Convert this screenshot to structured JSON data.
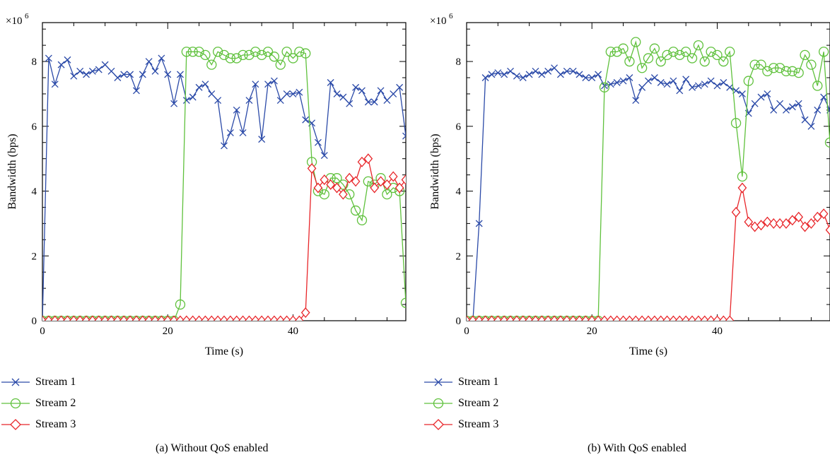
{
  "chart_data": [
    {
      "type": "line",
      "caption": "(a)  Without QoS enabled",
      "xlabel": "Time (s)",
      "ylabel": "Bandwidth (bps)",
      "y_multiplier": "×10",
      "y_exponent": "6",
      "xlim": [
        0,
        58
      ],
      "ylim": [
        0,
        9.2
      ],
      "x_ticks": [
        0,
        20,
        40
      ],
      "y_ticks": [
        0,
        2,
        4,
        6,
        8
      ],
      "legend_position": "bottom-left",
      "series": [
        {
          "name": "Stream 1",
          "color": "#2b4aa8",
          "marker": "x",
          "x": [
            0,
            1,
            2,
            3,
            4,
            5,
            6,
            7,
            8,
            9,
            10,
            11,
            12,
            13,
            14,
            15,
            16,
            17,
            18,
            19,
            20,
            21,
            22,
            23,
            24,
            25,
            26,
            27,
            28,
            29,
            30,
            31,
            32,
            33,
            34,
            35,
            36,
            37,
            38,
            39,
            40,
            41,
            42,
            43,
            44,
            45,
            46,
            47,
            48,
            49,
            50,
            51,
            52,
            53,
            54,
            55,
            56,
            57,
            58
          ],
          "y": [
            0,
            8.1,
            7.3,
            7.9,
            8.05,
            7.55,
            7.7,
            7.6,
            7.7,
            7.75,
            7.9,
            7.7,
            7.5,
            7.6,
            7.6,
            7.1,
            7.6,
            8.0,
            7.7,
            8.1,
            7.6,
            6.7,
            7.6,
            6.8,
            6.9,
            7.2,
            7.3,
            7.0,
            6.8,
            5.4,
            5.8,
            6.5,
            5.8,
            6.8,
            7.3,
            5.6,
            7.3,
            7.4,
            6.8,
            7.0,
            7.0,
            7.05,
            6.2,
            6.1,
            5.5,
            5.1,
            7.35,
            7.0,
            6.9,
            6.7,
            7.2,
            7.1,
            6.75,
            6.75,
            7.1,
            6.8,
            7.0,
            7.2,
            5.7
          ]
        },
        {
          "name": "Stream 2",
          "color": "#5fc13c",
          "marker": "circle",
          "x": [
            0,
            1,
            2,
            3,
            4,
            5,
            6,
            7,
            8,
            9,
            10,
            11,
            12,
            13,
            14,
            15,
            16,
            17,
            18,
            19,
            20,
            21,
            22,
            23,
            24,
            25,
            26,
            27,
            28,
            29,
            30,
            31,
            32,
            33,
            34,
            35,
            36,
            37,
            38,
            39,
            40,
            41,
            42,
            43,
            44,
            45,
            46,
            47,
            48,
            49,
            50,
            51,
            52,
            53,
            54,
            55,
            56,
            57,
            58
          ],
          "y": [
            0,
            0,
            0,
            0,
            0,
            0,
            0,
            0,
            0,
            0,
            0,
            0,
            0,
            0,
            0,
            0,
            0,
            0,
            0,
            0,
            0,
            0,
            0.5,
            8.3,
            8.3,
            8.3,
            8.2,
            7.9,
            8.3,
            8.2,
            8.1,
            8.1,
            8.2,
            8.2,
            8.3,
            8.2,
            8.3,
            8.15,
            7.9,
            8.3,
            8.1,
            8.3,
            8.25,
            4.9,
            4.0,
            3.9,
            4.4,
            4.4,
            4.2,
            3.9,
            3.4,
            3.1,
            4.3,
            4.2,
            4.4,
            3.9,
            4.1,
            4.0,
            0.55
          ]
        },
        {
          "name": "Stream 3",
          "color": "#e8262a",
          "marker": "diamond",
          "x": [
            0,
            1,
            2,
            3,
            4,
            5,
            6,
            7,
            8,
            9,
            10,
            11,
            12,
            13,
            14,
            15,
            16,
            17,
            18,
            19,
            20,
            21,
            22,
            23,
            24,
            25,
            26,
            27,
            28,
            29,
            30,
            31,
            32,
            33,
            34,
            35,
            36,
            37,
            38,
            39,
            40,
            41,
            42,
            43,
            44,
            45,
            46,
            47,
            48,
            49,
            50,
            51,
            52,
            53,
            54,
            55,
            56,
            57,
            58
          ],
          "y": [
            0,
            0,
            0,
            0,
            0,
            0,
            0,
            0,
            0,
            0,
            0,
            0,
            0,
            0,
            0,
            0,
            0,
            0,
            0,
            0,
            0,
            0,
            0,
            0,
            0,
            0,
            0,
            0,
            0,
            0,
            0,
            0,
            0,
            0,
            0,
            0,
            0,
            0,
            0,
            0,
            0,
            0,
            0.25,
            4.7,
            4.1,
            4.35,
            4.2,
            4.1,
            3.9,
            4.4,
            4.3,
            4.9,
            5.0,
            4.1,
            4.3,
            4.2,
            4.45,
            4.1,
            4.35
          ]
        }
      ]
    },
    {
      "type": "line",
      "caption": "(b)  With QoS enabled",
      "xlabel": "Time (s)",
      "ylabel": "Bandwidth (bps)",
      "y_multiplier": "×10",
      "y_exponent": "6",
      "xlim": [
        0,
        58
      ],
      "ylim": [
        0,
        9.2
      ],
      "x_ticks": [
        0,
        20,
        40
      ],
      "y_ticks": [
        0,
        2,
        4,
        6,
        8
      ],
      "legend_position": "bottom-left",
      "series": [
        {
          "name": "Stream 1",
          "color": "#2b4aa8",
          "marker": "x",
          "x": [
            0,
            1,
            2,
            3,
            4,
            5,
            6,
            7,
            8,
            9,
            10,
            11,
            12,
            13,
            14,
            15,
            16,
            17,
            18,
            19,
            20,
            21,
            22,
            23,
            24,
            25,
            26,
            27,
            28,
            29,
            30,
            31,
            32,
            33,
            34,
            35,
            36,
            37,
            38,
            39,
            40,
            41,
            42,
            43,
            44,
            45,
            46,
            47,
            48,
            49,
            50,
            51,
            52,
            53,
            54,
            55,
            56,
            57,
            58
          ],
          "y": [
            0,
            0,
            3.0,
            7.5,
            7.6,
            7.65,
            7.6,
            7.7,
            7.55,
            7.5,
            7.6,
            7.7,
            7.6,
            7.7,
            7.8,
            7.6,
            7.7,
            7.7,
            7.6,
            7.5,
            7.5,
            7.6,
            7.25,
            7.3,
            7.35,
            7.4,
            7.5,
            6.8,
            7.2,
            7.4,
            7.5,
            7.35,
            7.3,
            7.4,
            7.1,
            7.45,
            7.2,
            7.25,
            7.3,
            7.4,
            7.25,
            7.35,
            7.2,
            7.1,
            7.0,
            6.4,
            6.7,
            6.9,
            7.0,
            6.5,
            6.7,
            6.5,
            6.6,
            6.7,
            6.2,
            6.0,
            6.5,
            6.9,
            6.5
          ]
        },
        {
          "name": "Stream 2",
          "color": "#5fc13c",
          "marker": "circle",
          "x": [
            0,
            1,
            2,
            3,
            4,
            5,
            6,
            7,
            8,
            9,
            10,
            11,
            12,
            13,
            14,
            15,
            16,
            17,
            18,
            19,
            20,
            21,
            22,
            23,
            24,
            25,
            26,
            27,
            28,
            29,
            30,
            31,
            32,
            33,
            34,
            35,
            36,
            37,
            38,
            39,
            40,
            41,
            42,
            43,
            44,
            45,
            46,
            47,
            48,
            49,
            50,
            51,
            52,
            53,
            54,
            55,
            56,
            57,
            58
          ],
          "y": [
            0,
            0,
            0,
            0,
            0,
            0,
            0,
            0,
            0,
            0,
            0,
            0,
            0,
            0,
            0,
            0,
            0,
            0,
            0,
            0,
            0,
            0,
            7.2,
            8.3,
            8.3,
            8.4,
            8.0,
            8.6,
            7.8,
            8.1,
            8.4,
            8.0,
            8.2,
            8.3,
            8.2,
            8.3,
            8.1,
            8.5,
            8.0,
            8.3,
            8.2,
            8.0,
            8.3,
            6.1,
            4.45,
            7.4,
            7.9,
            7.9,
            7.7,
            7.8,
            7.8,
            7.7,
            7.7,
            7.65,
            8.2,
            7.9,
            7.25,
            8.3,
            5.5
          ]
        },
        {
          "name": "Stream 3",
          "color": "#e8262a",
          "marker": "diamond",
          "x": [
            0,
            1,
            2,
            3,
            4,
            5,
            6,
            7,
            8,
            9,
            10,
            11,
            12,
            13,
            14,
            15,
            16,
            17,
            18,
            19,
            20,
            21,
            22,
            23,
            24,
            25,
            26,
            27,
            28,
            29,
            30,
            31,
            32,
            33,
            34,
            35,
            36,
            37,
            38,
            39,
            40,
            41,
            42,
            43,
            44,
            45,
            46,
            47,
            48,
            49,
            50,
            51,
            52,
            53,
            54,
            55,
            56,
            57,
            58
          ],
          "y": [
            0,
            0,
            0,
            0,
            0,
            0,
            0,
            0,
            0,
            0,
            0,
            0,
            0,
            0,
            0,
            0,
            0,
            0,
            0,
            0,
            0,
            0,
            0,
            0,
            0,
            0,
            0,
            0,
            0,
            0,
            0,
            0,
            0,
            0,
            0,
            0,
            0,
            0,
            0,
            0,
            0,
            0,
            0,
            3.35,
            4.1,
            3.05,
            2.9,
            2.95,
            3.05,
            3.0,
            3.0,
            3.0,
            3.1,
            3.2,
            2.9,
            3.0,
            3.2,
            3.3,
            2.8
          ]
        }
      ]
    }
  ]
}
